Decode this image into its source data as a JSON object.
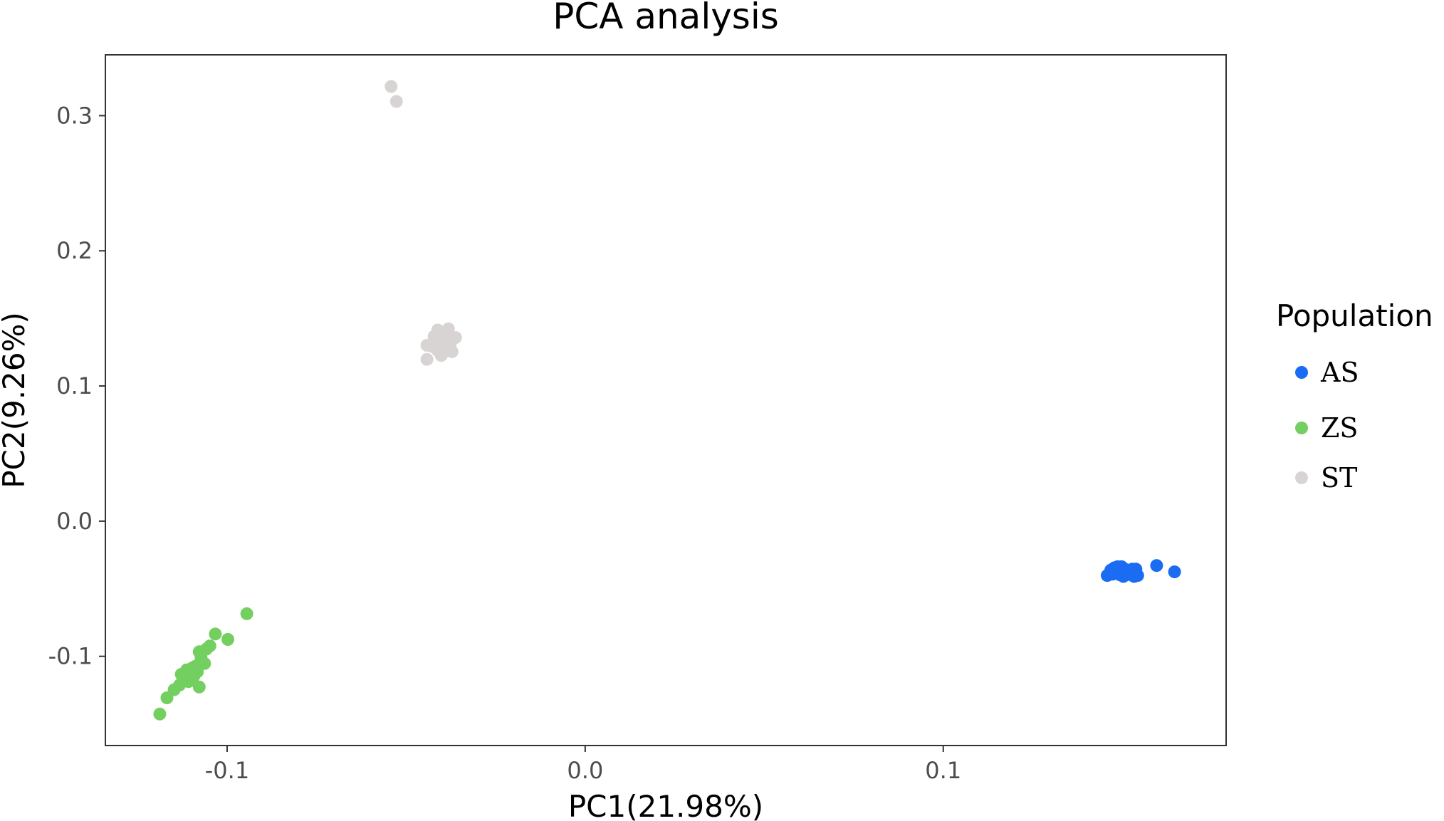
{
  "chart_data": {
    "type": "scatter",
    "title": "PCA analysis",
    "xlabel": "PC1(21.98%)",
    "ylabel": "PC2(9.26%)",
    "xlim": [
      -0.134,
      0.179
    ],
    "ylim": [
      -0.166,
      0.345
    ],
    "xticks": [
      -0.1,
      0.0,
      0.1
    ],
    "xtick_labels": [
      "-0.1",
      "0.0",
      "0.1"
    ],
    "yticks": [
      -0.1,
      0.0,
      0.1,
      0.2,
      0.3
    ],
    "ytick_labels": [
      "-0.1",
      "0.0",
      "0.1",
      "0.2",
      "0.3"
    ],
    "grid": false,
    "legend": {
      "title": "Population",
      "placement": "right"
    },
    "series": [
      {
        "name": "AS",
        "color": "#1a6cf2",
        "points": [
          [
            0.1468,
            -0.0362
          ],
          [
            0.1478,
            -0.0345
          ],
          [
            0.1487,
            -0.0337
          ],
          [
            0.1493,
            -0.0345
          ],
          [
            0.1498,
            -0.0337
          ],
          [
            0.1503,
            -0.0349
          ],
          [
            0.1483,
            -0.0383
          ],
          [
            0.1493,
            -0.0396
          ],
          [
            0.1508,
            -0.0389
          ],
          [
            0.1518,
            -0.0376
          ],
          [
            0.1528,
            -0.0355
          ],
          [
            0.1538,
            -0.0355
          ],
          [
            0.1458,
            -0.0402
          ],
          [
            0.1473,
            -0.0392
          ],
          [
            0.1503,
            -0.0409
          ],
          [
            0.1523,
            -0.0396
          ],
          [
            0.1533,
            -0.0409
          ],
          [
            0.1543,
            -0.0402
          ],
          [
            0.1513,
            -0.0362
          ],
          [
            0.1488,
            -0.0369
          ],
          [
            0.1596,
            -0.0328
          ],
          [
            0.1646,
            -0.0375
          ]
        ]
      },
      {
        "name": "ZS",
        "color": "#74cf61",
        "points": [
          [
            -0.0945,
            -0.0685
          ],
          [
            -0.1033,
            -0.0835
          ],
          [
            -0.0998,
            -0.0875
          ],
          [
            -0.1048,
            -0.0923
          ],
          [
            -0.1058,
            -0.0946
          ],
          [
            -0.1078,
            -0.0966
          ],
          [
            -0.1063,
            -0.1053
          ],
          [
            -0.1088,
            -0.1073
          ],
          [
            -0.1098,
            -0.1087
          ],
          [
            -0.1113,
            -0.11
          ],
          [
            -0.1083,
            -0.1114
          ],
          [
            -0.1128,
            -0.1133
          ],
          [
            -0.1093,
            -0.1147
          ],
          [
            -0.1118,
            -0.116
          ],
          [
            -0.1108,
            -0.1187
          ],
          [
            -0.1133,
            -0.1213
          ],
          [
            -0.1078,
            -0.1227
          ],
          [
            -0.1148,
            -0.1247
          ],
          [
            -0.1168,
            -0.1307
          ],
          [
            -0.1188,
            -0.1427
          ],
          [
            -0.1073,
            -0.1007
          ],
          [
            -0.1103,
            -0.1127
          ],
          [
            -0.1123,
            -0.1173
          ]
        ]
      },
      {
        "name": "ST",
        "color": "#d9d4d4",
        "points": [
          [
            -0.0542,
            0.3216
          ],
          [
            -0.0527,
            0.3105
          ],
          [
            -0.0412,
            0.1414
          ],
          [
            -0.0382,
            0.1423
          ],
          [
            -0.0402,
            0.1395
          ],
          [
            -0.0422,
            0.1367
          ],
          [
            -0.0392,
            0.1377
          ],
          [
            -0.0362,
            0.1358
          ],
          [
            -0.0442,
            0.1301
          ],
          [
            -0.0412,
            0.132
          ],
          [
            -0.0377,
            0.1311
          ],
          [
            -0.0412,
            0.1263
          ],
          [
            -0.0372,
            0.1254
          ],
          [
            -0.0397,
            0.1244
          ],
          [
            -0.0402,
            0.1226
          ],
          [
            -0.0442,
            0.1197
          ],
          [
            -0.0392,
            0.1282
          ],
          [
            -0.0427,
            0.1292
          ]
        ]
      }
    ]
  }
}
